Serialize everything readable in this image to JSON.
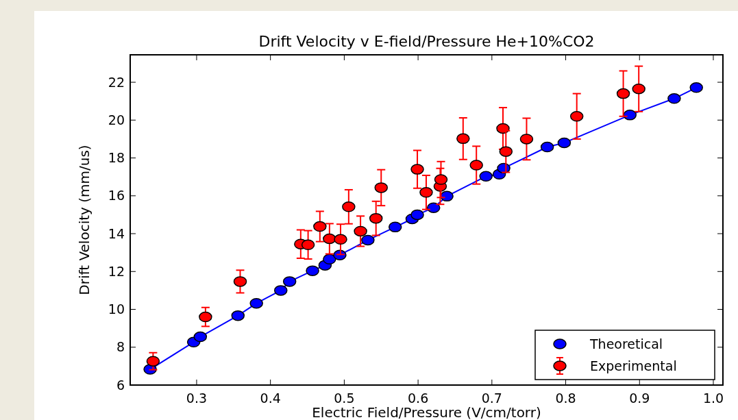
{
  "chart_data": {
    "type": "line",
    "title": "Drift Velocity v E-field/Pressure He+10%CO2",
    "xlabel": "Electric Field/Pressure (V/cm/torr)",
    "ylabel": "Drift Velocity (mm/us)",
    "xlim": [
      0.21,
      1.013
    ],
    "ylim": [
      6,
      23.45
    ],
    "xticks": [
      {
        "value": 0.3,
        "label": "0.3"
      },
      {
        "value": 0.4,
        "label": "0.4"
      },
      {
        "value": 0.5,
        "label": "0.5"
      },
      {
        "value": 0.6,
        "label": "0.6"
      },
      {
        "value": 0.7,
        "label": "0.7"
      },
      {
        "value": 0.8,
        "label": "0.8"
      },
      {
        "value": 0.9,
        "label": "0.9"
      },
      {
        "value": 1.0,
        "label": "1.0"
      }
    ],
    "yticks": [
      6,
      8,
      10,
      12,
      14,
      16,
      18,
      20,
      22
    ],
    "grid": false,
    "legend": "bottom right",
    "marker": "circle",
    "line_style": "solid",
    "series": [
      {
        "name": "Theoretical",
        "color": "#0000ff",
        "x": [
          0.237,
          0.296,
          0.305,
          0.356,
          0.381,
          0.414,
          0.426,
          0.457,
          0.474,
          0.48,
          0.494,
          0.532,
          0.569,
          0.592,
          0.599,
          0.621,
          0.639,
          0.692,
          0.71,
          0.716,
          0.775,
          0.798,
          0.887,
          0.947,
          0.977
        ],
        "values": [
          6.83,
          8.27,
          8.55,
          9.67,
          10.32,
          11.0,
          11.47,
          12.04,
          12.33,
          12.65,
          12.87,
          13.66,
          14.35,
          14.78,
          15.0,
          15.37,
          15.98,
          17.03,
          17.14,
          17.46,
          18.58,
          18.8,
          20.27,
          21.14,
          21.72
        ]
      },
      {
        "name": "Experimental",
        "type": "scatter",
        "color": "#ff0000",
        "x": [
          0.241,
          0.312,
          0.359,
          0.441,
          0.451,
          0.467,
          0.48,
          0.495,
          0.506,
          0.522,
          0.543,
          0.55,
          0.599,
          0.611,
          0.63,
          0.631,
          0.661,
          0.679,
          0.715,
          0.719,
          0.747,
          0.815,
          0.878,
          0.899
        ],
        "values": [
          7.26,
          9.6,
          11.47,
          13.45,
          13.41,
          14.38,
          13.73,
          13.7,
          15.42,
          14.13,
          14.81,
          16.43,
          17.4,
          16.18,
          16.5,
          16.86,
          19.02,
          17.62,
          19.56,
          18.34,
          19.0,
          20.2,
          21.4,
          21.65
        ],
        "errors": [
          0.45,
          0.5,
          0.6,
          0.75,
          0.75,
          0.8,
          0.8,
          0.8,
          0.9,
          0.8,
          0.9,
          0.95,
          1.0,
          0.9,
          0.95,
          0.95,
          1.1,
          1.0,
          1.1,
          1.1,
          1.1,
          1.2,
          1.2,
          1.2
        ]
      }
    ]
  }
}
